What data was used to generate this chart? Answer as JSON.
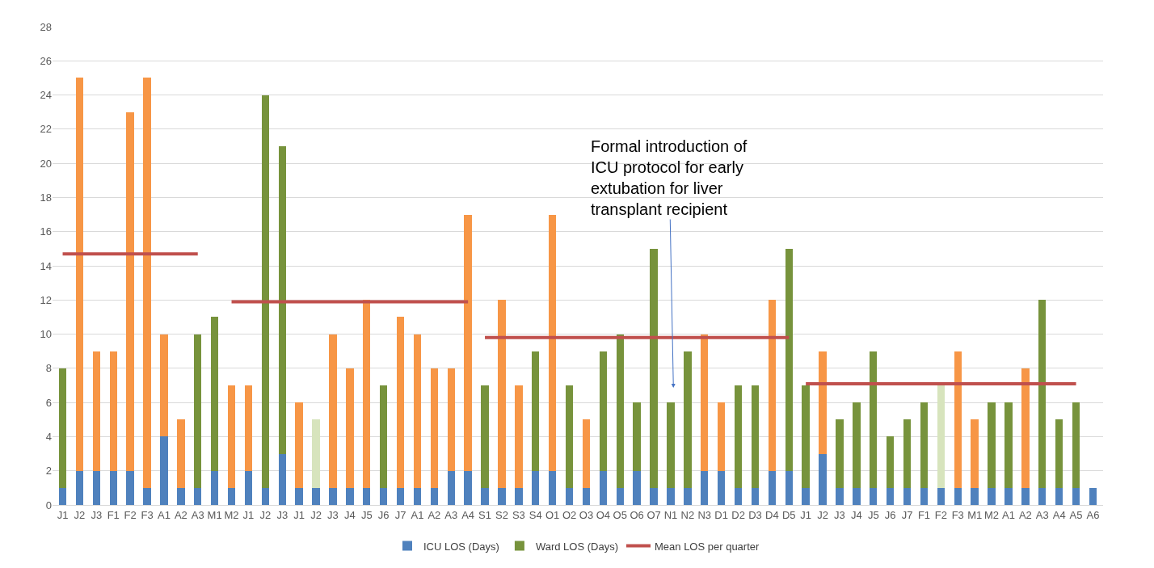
{
  "chart_data": {
    "type": "bar",
    "stacked": true,
    "categories": [
      "J1",
      "J2",
      "J3",
      "F1",
      "F2",
      "F3",
      "A1",
      "A2",
      "A3",
      "M1",
      "M2",
      "J1",
      "J2",
      "J3",
      "J1",
      "J2",
      "J3",
      "J4",
      "J5",
      "J6",
      "J7",
      "A1",
      "A2",
      "A3",
      "A4",
      "S1",
      "S2",
      "S3",
      "S4",
      "O1",
      "O2",
      "O3",
      "O4",
      "O5",
      "O6",
      "O7",
      "N1",
      "N2",
      "N3",
      "D1",
      "D2",
      "D3",
      "D4",
      "D5",
      "J1",
      "J2",
      "J3",
      "J4",
      "J5",
      "J6",
      "J7",
      "F1",
      "F2",
      "F3",
      "M1",
      "M2",
      "A1",
      "A2",
      "A3",
      "A4",
      "A5",
      "A6"
    ],
    "series": [
      {
        "name": "ICU LOS (Days)",
        "color": "#4f81bd",
        "values": [
          1,
          2,
          2,
          2,
          2,
          1,
          4,
          1,
          1,
          2,
          1,
          2,
          1,
          3,
          1,
          1,
          1,
          1,
          1,
          1,
          1,
          1,
          1,
          2,
          2,
          1,
          1,
          1,
          2,
          2,
          1,
          1,
          2,
          1,
          2,
          1,
          1,
          1,
          2,
          2,
          1,
          1,
          2,
          2,
          1,
          3,
          1,
          1,
          1,
          1,
          1,
          1,
          1,
          1,
          1,
          1,
          1,
          1,
          1,
          1,
          1,
          1
        ]
      },
      {
        "name": "Ward LOS (Days)",
        "color": "#77933c",
        "colors": [
          "#77933c",
          "#f79646",
          "#f79646",
          "#f79646",
          "#f79646",
          "#f79646",
          "#f79646",
          "#f79646",
          "#77933c",
          "#77933c",
          "#f79646",
          "#f79646",
          "#77933c",
          "#77933c",
          "#f79646",
          "#d7e4bd",
          "#f79646",
          "#f79646",
          "#f79646",
          "#77933c",
          "#f79646",
          "#f79646",
          "#f79646",
          "#f79646",
          "#f79646",
          "#77933c",
          "#f79646",
          "#f79646",
          "#77933c",
          "#f79646",
          "#77933c",
          "#f79646",
          "#77933c",
          "#77933c",
          "#77933c",
          "#77933c",
          "#77933c",
          "#77933c",
          "#f79646",
          "#f79646",
          "#77933c",
          "#77933c",
          "#f79646",
          "#77933c",
          "#77933c",
          "#f79646",
          "#77933c",
          "#77933c",
          "#77933c",
          "#77933c",
          "#77933c",
          "#77933c",
          "#d7e4bd",
          "#f79646",
          "#f79646",
          "#77933c",
          "#77933c",
          "#f79646",
          "#77933c",
          "#77933c",
          "#77933c",
          null
        ],
        "values": [
          7,
          23,
          7,
          7,
          21,
          24,
          6,
          4,
          9,
          9,
          6,
          5,
          23,
          18,
          5,
          4,
          9,
          7,
          11,
          6,
          10,
          9,
          7,
          6,
          15,
          6,
          11,
          6,
          7,
          15,
          6,
          4,
          7,
          9,
          4,
          14,
          5,
          8,
          8,
          4,
          6,
          6,
          10,
          13,
          6,
          6,
          4,
          5,
          8,
          3,
          4,
          5,
          6,
          8,
          4,
          5,
          5,
          7,
          11,
          4,
          5,
          null
        ]
      },
      {
        "name": "Mean LOS per quarter",
        "type": "line",
        "color": "#c0504d",
        "values": [
          14.7,
          14.7,
          14.7,
          14.7,
          14.7,
          14.7,
          14.7,
          14.7,
          14.7,
          null,
          null,
          null,
          null,
          null,
          null,
          null,
          null,
          null,
          null,
          null,
          null,
          null,
          null,
          null,
          null,
          null,
          null,
          null,
          null,
          null,
          null,
          null,
          null,
          null,
          null,
          null,
          null,
          null,
          null,
          null,
          null,
          null,
          null,
          null,
          null,
          null,
          null,
          null,
          null,
          null,
          null,
          null,
          null,
          null,
          null,
          null,
          null,
          null,
          null,
          null,
          null,
          null
        ]
      },
      {
        "type": "line",
        "color": "#c0504d",
        "values": [
          null,
          null,
          null,
          null,
          null,
          null,
          null,
          null,
          null,
          null,
          11.9,
          11.9,
          11.9,
          11.9,
          11.9,
          11.9,
          11.9,
          11.9,
          11.9,
          11.9,
          11.9,
          11.9,
          11.9,
          11.9,
          11.9,
          null,
          null,
          null,
          null,
          null,
          null,
          null,
          null,
          null,
          null,
          null,
          null,
          null,
          null,
          null,
          null,
          null,
          null,
          null,
          null,
          null,
          null,
          null,
          null,
          null,
          null,
          null,
          null,
          null,
          null,
          null,
          null,
          null,
          null,
          null,
          null,
          null
        ]
      },
      {
        "type": "line",
        "color": "#c0504d",
        "values": [
          null,
          null,
          null,
          null,
          null,
          null,
          null,
          null,
          null,
          null,
          null,
          null,
          null,
          null,
          null,
          null,
          null,
          null,
          null,
          null,
          null,
          null,
          null,
          null,
          null,
          9.8,
          9.8,
          9.8,
          9.8,
          9.8,
          9.8,
          9.8,
          9.8,
          9.8,
          9.8,
          9.8,
          9.8,
          9.8,
          9.8,
          9.8,
          9.8,
          9.8,
          9.8,
          9.8,
          null,
          null,
          null,
          null,
          null,
          null,
          null,
          null,
          null,
          null,
          null,
          null,
          null,
          null,
          null,
          null,
          null,
          null
        ]
      },
      {
        "type": "line",
        "color": "#c0504d",
        "values": [
          null,
          null,
          null,
          null,
          null,
          null,
          null,
          null,
          null,
          null,
          null,
          null,
          null,
          null,
          null,
          null,
          null,
          null,
          null,
          null,
          null,
          null,
          null,
          null,
          null,
          null,
          null,
          null,
          null,
          null,
          null,
          null,
          null,
          null,
          null,
          null,
          null,
          null,
          null,
          null,
          null,
          null,
          null,
          null,
          7.1,
          7.1,
          7.1,
          7.1,
          7.1,
          7.1,
          7.1,
          7.1,
          7.1,
          7.1,
          7.1,
          7.1,
          7.1,
          7.1,
          7.1,
          7.1,
          7.1,
          null
        ]
      }
    ],
    "ylim": [
      0,
      28
    ],
    "yticks": [
      0,
      2,
      4,
      6,
      8,
      10,
      12,
      14,
      16,
      18,
      20,
      22,
      24,
      26,
      28
    ],
    "grid": "y",
    "legend": "bottom",
    "marker": "none",
    "annotations": [
      "Formal introduction of\nICU protocol for early\nextubation for liver\ntransplant recipient"
    ]
  }
}
